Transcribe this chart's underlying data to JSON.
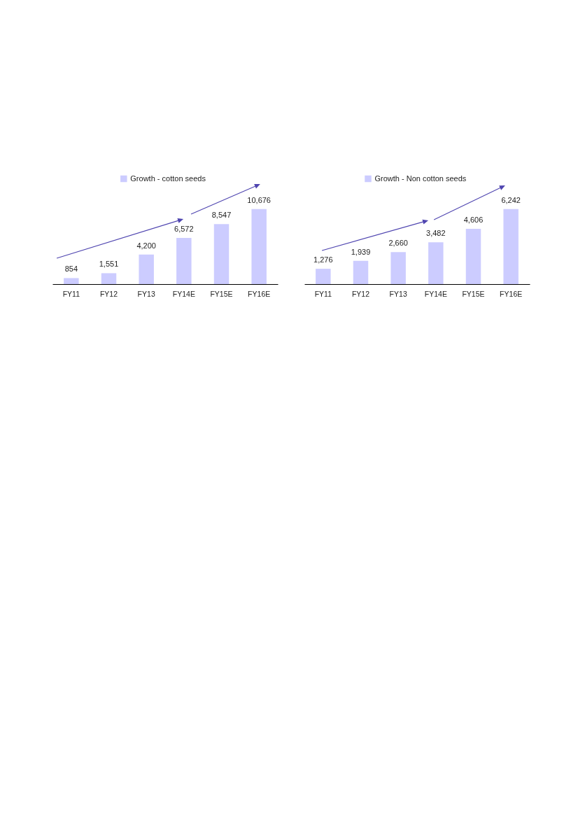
{
  "chart_data": [
    {
      "type": "bar",
      "categories": [
        "FY11",
        "FY12",
        "FY13",
        "FY14E",
        "FY15E",
        "FY16E"
      ],
      "series": [
        {
          "name": "Growth - cotton seeds",
          "color": "#ccccff",
          "values": [
            854,
            1551,
            4200,
            6572,
            8547,
            10676
          ],
          "value_labels": [
            "854",
            "1,551",
            "4,200",
            "6,572",
            "8,547",
            "10,676"
          ]
        }
      ],
      "legend": "top"
    },
    {
      "type": "bar",
      "categories": [
        "FY11",
        "FY12",
        "FY13",
        "FY14E",
        "FY15E",
        "FY16E"
      ],
      "series": [
        {
          "name": "Growth - Non cotton seeds",
          "color": "#ccccff",
          "values": [
            1276,
            1939,
            2660,
            3482,
            4606,
            6242
          ],
          "value_labels": [
            "1,276",
            "1,939",
            "2,660",
            "3,482",
            "4,606",
            "6,242"
          ]
        }
      ],
      "legend": "top"
    }
  ]
}
